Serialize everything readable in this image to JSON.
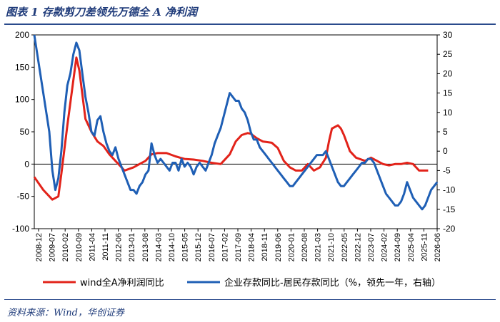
{
  "header": {
    "title": "图表 1    存款剪刀差领先万德全 A 净利润"
  },
  "footer": {
    "source": "资料来源：Wind，华创证券"
  },
  "chart_data": {
    "type": "line",
    "left_axis": {
      "min": -100,
      "max": 200,
      "ticks": [
        200,
        150,
        100,
        50,
        0,
        -50,
        -100
      ]
    },
    "right_axis": {
      "min": -20,
      "max": 30,
      "ticks": [
        30,
        25,
        20,
        15,
        10,
        5,
        0,
        -5,
        -10,
        -15,
        -20
      ]
    },
    "x_ticks": [
      "2008-12",
      "2009-07",
      "2010-02",
      "2010-09",
      "2011-04",
      "2011-11",
      "2012-06",
      "2013-01",
      "2013-08",
      "2014-03",
      "2014-10",
      "2015-05",
      "2015-12",
      "2016-07",
      "2017-02",
      "2017-09",
      "2018-04",
      "2018-11",
      "2019-06",
      "2020-01",
      "2020-08",
      "2021-03",
      "2021-10",
      "2022-05",
      "2022-12",
      "2023-07",
      "2024-02",
      "2024-09",
      "2025-04",
      "2025-11",
      "2026-06"
    ],
    "series": [
      {
        "name": "wind全A净利润同比",
        "axis": "left",
        "color": "#e2231a",
        "points": [
          [
            0,
            -20
          ],
          [
            3,
            -40
          ],
          [
            6,
            -55
          ],
          [
            8,
            -50
          ],
          [
            9,
            -15
          ],
          [
            11,
            60
          ],
          [
            13,
            130
          ],
          [
            14,
            165
          ],
          [
            15,
            145
          ],
          [
            17,
            70
          ],
          [
            19,
            50
          ],
          [
            21,
            35
          ],
          [
            23,
            28
          ],
          [
            25,
            15
          ],
          [
            27,
            5
          ],
          [
            29,
            -5
          ],
          [
            30,
            -10
          ],
          [
            33,
            -5
          ],
          [
            35,
            0
          ],
          [
            37,
            5
          ],
          [
            39,
            15
          ],
          [
            41,
            17
          ],
          [
            44,
            17
          ],
          [
            47,
            12
          ],
          [
            50,
            8
          ],
          [
            53,
            7
          ],
          [
            56,
            5
          ],
          [
            59,
            2
          ],
          [
            62,
            0
          ],
          [
            65,
            15
          ],
          [
            67,
            35
          ],
          [
            69,
            45
          ],
          [
            71,
            48
          ],
          [
            72,
            47
          ],
          [
            74,
            40
          ],
          [
            76,
            35
          ],
          [
            79,
            33
          ],
          [
            81,
            25
          ],
          [
            83,
            5
          ],
          [
            85,
            -5
          ],
          [
            87,
            -10
          ],
          [
            89,
            -10
          ],
          [
            91,
            0
          ],
          [
            93,
            -10
          ],
          [
            95,
            -5
          ],
          [
            97,
            10
          ],
          [
            98,
            35
          ],
          [
            99,
            55
          ],
          [
            101,
            60
          ],
          [
            102,
            55
          ],
          [
            103,
            45
          ],
          [
            105,
            20
          ],
          [
            107,
            10
          ],
          [
            110,
            5
          ],
          [
            112,
            10
          ],
          [
            114,
            5
          ],
          [
            116,
            0
          ],
          [
            118,
            -2
          ],
          [
            120,
            0
          ],
          [
            122,
            0
          ],
          [
            124,
            2
          ],
          [
            126,
            0
          ],
          [
            128,
            -10
          ],
          [
            131,
            -10
          ]
        ]
      },
      {
        "name": "企业存款同比-居民存款同比（%，领先一年，右轴）",
        "axis": "right",
        "color": "#1f5fb5",
        "points": [
          [
            0,
            31
          ],
          [
            1,
            25
          ],
          [
            2,
            20
          ],
          [
            3,
            15
          ],
          [
            4,
            10
          ],
          [
            5,
            5
          ],
          [
            6,
            -5
          ],
          [
            7,
            -10
          ],
          [
            8,
            -7
          ],
          [
            9,
            0
          ],
          [
            10,
            10
          ],
          [
            11,
            17
          ],
          [
            12,
            20
          ],
          [
            13,
            25
          ],
          [
            14,
            28
          ],
          [
            15,
            26
          ],
          [
            16,
            20
          ],
          [
            17,
            14
          ],
          [
            18,
            10
          ],
          [
            19,
            5
          ],
          [
            20,
            4
          ],
          [
            21,
            8
          ],
          [
            22,
            9
          ],
          [
            23,
            5
          ],
          [
            24,
            2
          ],
          [
            25,
            0
          ],
          [
            26,
            -1
          ],
          [
            27,
            1
          ],
          [
            28,
            -2
          ],
          [
            29,
            -4
          ],
          [
            30,
            -6
          ],
          [
            31,
            -8
          ],
          [
            32,
            -10
          ],
          [
            33,
            -10
          ],
          [
            34,
            -11
          ],
          [
            35,
            -9
          ],
          [
            36,
            -8
          ],
          [
            37,
            -6
          ],
          [
            38,
            -5
          ],
          [
            39,
            2
          ],
          [
            40,
            -1
          ],
          [
            41,
            -3
          ],
          [
            42,
            -2
          ],
          [
            43,
            -3
          ],
          [
            44,
            -4
          ],
          [
            45,
            -5
          ],
          [
            46,
            -3
          ],
          [
            47,
            -3
          ],
          [
            48,
            -5
          ],
          [
            49,
            -2
          ],
          [
            50,
            -4
          ],
          [
            51,
            -3
          ],
          [
            52,
            -4
          ],
          [
            53,
            -6
          ],
          [
            54,
            -4
          ],
          [
            55,
            -3
          ],
          [
            56,
            -4
          ],
          [
            57,
            -5
          ],
          [
            58,
            -3
          ],
          [
            59,
            -1
          ],
          [
            60,
            2
          ],
          [
            61,
            4
          ],
          [
            62,
            6
          ],
          [
            63,
            9
          ],
          [
            64,
            12
          ],
          [
            65,
            15
          ],
          [
            66,
            14
          ],
          [
            67,
            13
          ],
          [
            68,
            13
          ],
          [
            69,
            11
          ],
          [
            70,
            10
          ],
          [
            71,
            8
          ],
          [
            72,
            5
          ],
          [
            73,
            3
          ],
          [
            74,
            3
          ],
          [
            75,
            1
          ],
          [
            76,
            0
          ],
          [
            77,
            -1
          ],
          [
            78,
            -2
          ],
          [
            79,
            -3
          ],
          [
            80,
            -4
          ],
          [
            81,
            -5
          ],
          [
            82,
            -6
          ],
          [
            83,
            -7
          ],
          [
            84,
            -8
          ],
          [
            85,
            -9
          ],
          [
            86,
            -9
          ],
          [
            87,
            -8
          ],
          [
            88,
            -7
          ],
          [
            89,
            -6
          ],
          [
            90,
            -5
          ],
          [
            91,
            -4
          ],
          [
            92,
            -3
          ],
          [
            93,
            -2
          ],
          [
            94,
            -1
          ],
          [
            95,
            -1
          ],
          [
            96,
            -1
          ],
          [
            97,
            0
          ],
          [
            98,
            -2
          ],
          [
            99,
            -4
          ],
          [
            100,
            -6
          ],
          [
            101,
            -8
          ],
          [
            102,
            -9
          ],
          [
            103,
            -9
          ],
          [
            104,
            -8
          ],
          [
            105,
            -7
          ],
          [
            106,
            -6
          ],
          [
            107,
            -5
          ],
          [
            108,
            -4
          ],
          [
            109,
            -3
          ],
          [
            110,
            -3
          ],
          [
            111,
            -2
          ],
          [
            112,
            -2
          ],
          [
            113,
            -3
          ],
          [
            114,
            -5
          ],
          [
            115,
            -7
          ],
          [
            116,
            -9
          ],
          [
            117,
            -11
          ],
          [
            118,
            -12
          ],
          [
            119,
            -13
          ],
          [
            120,
            -14
          ],
          [
            121,
            -14
          ],
          [
            122,
            -13
          ],
          [
            123,
            -11
          ],
          [
            124,
            -8
          ],
          [
            125,
            -10
          ],
          [
            126,
            -12
          ],
          [
            127,
            -13
          ],
          [
            128,
            -14
          ],
          [
            129,
            -15
          ],
          [
            130,
            -14
          ],
          [
            131,
            -12
          ],
          [
            132,
            -10
          ],
          [
            133,
            -9
          ],
          [
            134,
            -8
          ]
        ]
      }
    ],
    "legend": [
      {
        "label": "wind全A净利润同比",
        "color": "#e2231a"
      },
      {
        "label": "企业存款同比-居民存款同比（%，领先一年，右轴）",
        "color": "#1f5fb5"
      }
    ],
    "legend_position": "bottom"
  }
}
